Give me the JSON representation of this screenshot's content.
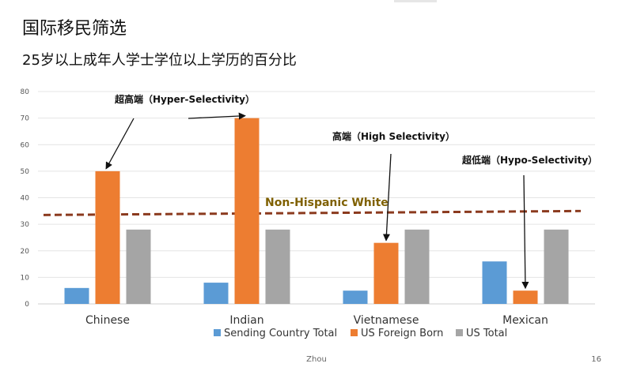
{
  "slide": {
    "title": "国际移民筛选",
    "subtitle": "25岁以上成年人学士学位以上学历的百分比",
    "footer_author": "Zhou",
    "page_number": "16"
  },
  "colors": {
    "Sending Country Total": "#5b9bd5",
    "US Foreign Born": "#ed7d31",
    "US Total": "#a5a5a5",
    "reference_line": "#8b3a1e",
    "reference_label": "#7f6000"
  },
  "chart_data": {
    "type": "bar",
    "title": "",
    "xlabel": "",
    "ylabel": "",
    "ylim": [
      0,
      80
    ],
    "yticks": [
      0,
      10,
      20,
      30,
      40,
      50,
      60,
      70,
      80
    ],
    "grid": true,
    "legend_position": "bottom",
    "categories": [
      "Chinese",
      "Indian",
      "Vietnamese",
      "Mexican"
    ],
    "series": [
      {
        "name": "Sending Country Total",
        "values": [
          6,
          8,
          5,
          16
        ]
      },
      {
        "name": "US Foreign Born",
        "values": [
          50,
          70,
          23,
          5
        ]
      },
      {
        "name": "US Total",
        "values": [
          28,
          28,
          28,
          28
        ]
      }
    ],
    "reference_line": {
      "label": "Non-Hispanic White",
      "start_value": 33.5,
      "end_value": 35,
      "style": "dashed"
    },
    "annotations": [
      {
        "text": "超高端（Hyper-Selectivity）",
        "targets": [
          {
            "category": "Chinese",
            "series": "US Foreign Born"
          },
          {
            "category": "Indian",
            "series": "US Foreign Born"
          }
        ]
      },
      {
        "text": "高端（High Selectivity）",
        "targets": [
          {
            "category": "Vietnamese",
            "series": "US Foreign Born"
          }
        ]
      },
      {
        "text": "超低端（Hypo-Selectivity）",
        "targets": [
          {
            "category": "Mexican",
            "series": "US Foreign Born"
          }
        ]
      }
    ]
  }
}
